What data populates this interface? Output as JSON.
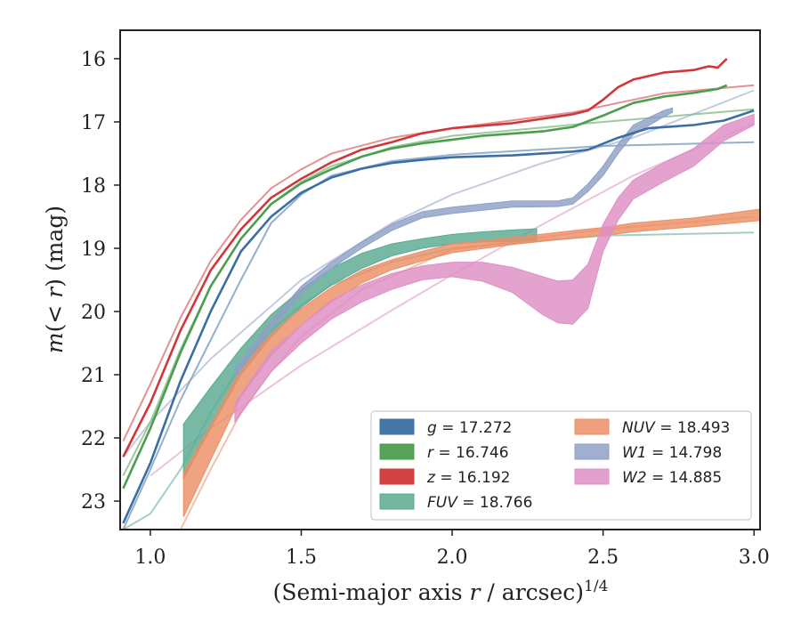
{
  "chart_data": {
    "type": "line",
    "xlabel": "(Semi-major axis r / arcsec)^1/4",
    "ylabel": "m(< r) (mag)",
    "xlim": [
      0.9,
      3.02
    ],
    "ylim": [
      23.45,
      15.55
    ],
    "y_inverted": true,
    "grid": false,
    "legend_position": "lower-right",
    "xticks": [
      {
        "value": 1.0,
        "label": "1.0"
      },
      {
        "value": 1.5,
        "label": "1.5"
      },
      {
        "value": 2.0,
        "label": "2.0"
      },
      {
        "value": 2.5,
        "label": "2.5"
      },
      {
        "value": 3.0,
        "label": "3.0"
      }
    ],
    "yticks": [
      {
        "value": 16,
        "label": "16"
      },
      {
        "value": 17,
        "label": "17"
      },
      {
        "value": 18,
        "label": "18"
      },
      {
        "value": 19,
        "label": "19"
      },
      {
        "value": 20,
        "label": "20"
      },
      {
        "value": 21,
        "label": "21"
      },
      {
        "value": 22,
        "label": "22"
      },
      {
        "value": 23,
        "label": "23"
      }
    ],
    "series": [
      {
        "name": "g = 17.272",
        "band": "g",
        "value": "17.272",
        "color": "#3b6fa3",
        "style": "line",
        "data": [
          [
            0.91,
            23.35
          ],
          [
            1.0,
            22.4
          ],
          [
            1.1,
            21.1
          ],
          [
            1.2,
            20.0
          ],
          [
            1.3,
            19.05
          ],
          [
            1.4,
            18.5
          ],
          [
            1.5,
            18.12
          ],
          [
            1.6,
            17.88
          ],
          [
            1.7,
            17.74
          ],
          [
            1.8,
            17.65
          ],
          [
            1.9,
            17.6
          ],
          [
            2.0,
            17.56
          ],
          [
            2.2,
            17.53
          ],
          [
            2.4,
            17.47
          ],
          [
            2.45,
            17.44
          ],
          [
            2.55,
            17.25
          ],
          [
            2.65,
            17.1
          ],
          [
            2.8,
            17.05
          ],
          [
            2.9,
            16.98
          ],
          [
            3.0,
            16.82
          ]
        ],
        "model": [
          [
            0.91,
            23.45
          ],
          [
            1.0,
            22.5
          ],
          [
            1.1,
            21.4
          ],
          [
            1.2,
            20.45
          ],
          [
            1.3,
            19.5
          ],
          [
            1.4,
            18.6
          ],
          [
            1.5,
            18.15
          ],
          [
            1.6,
            17.85
          ],
          [
            1.8,
            17.62
          ],
          [
            2.0,
            17.52
          ],
          [
            2.5,
            17.38
          ],
          [
            3.0,
            17.32
          ]
        ]
      },
      {
        "name": "r = 16.746",
        "band": "r",
        "value": "16.746",
        "color": "#4c9e4f",
        "style": "line",
        "data": [
          [
            0.91,
            22.8
          ],
          [
            1.0,
            21.85
          ],
          [
            1.1,
            20.65
          ],
          [
            1.2,
            19.6
          ],
          [
            1.3,
            18.85
          ],
          [
            1.4,
            18.3
          ],
          [
            1.5,
            17.97
          ],
          [
            1.6,
            17.75
          ],
          [
            1.7,
            17.55
          ],
          [
            1.8,
            17.42
          ],
          [
            1.9,
            17.34
          ],
          [
            2.0,
            17.28
          ],
          [
            2.1,
            17.22
          ],
          [
            2.3,
            17.15
          ],
          [
            2.4,
            17.08
          ],
          [
            2.5,
            16.9
          ],
          [
            2.6,
            16.7
          ],
          [
            2.7,
            16.6
          ],
          [
            2.8,
            16.54
          ],
          [
            2.88,
            16.48
          ],
          [
            2.91,
            16.42
          ]
        ],
        "model": [
          [
            0.91,
            22.6
          ],
          [
            1.0,
            21.75
          ],
          [
            1.1,
            20.6
          ],
          [
            1.2,
            19.6
          ],
          [
            1.3,
            18.85
          ],
          [
            1.4,
            18.3
          ],
          [
            1.5,
            17.95
          ],
          [
            1.6,
            17.7
          ],
          [
            1.8,
            17.4
          ],
          [
            2.0,
            17.22
          ],
          [
            2.5,
            17.0
          ],
          [
            3.0,
            16.8
          ]
        ]
      },
      {
        "name": "z = 16.192",
        "band": "z",
        "value": "16.192",
        "color": "#d0373a",
        "style": "line",
        "data": [
          [
            0.91,
            22.3
          ],
          [
            1.0,
            21.45
          ],
          [
            1.1,
            20.3
          ],
          [
            1.2,
            19.35
          ],
          [
            1.3,
            18.7
          ],
          [
            1.4,
            18.2
          ],
          [
            1.5,
            17.9
          ],
          [
            1.6,
            17.64
          ],
          [
            1.7,
            17.44
          ],
          [
            1.8,
            17.32
          ],
          [
            1.9,
            17.18
          ],
          [
            2.0,
            17.1
          ],
          [
            2.2,
            17.02
          ],
          [
            2.4,
            16.88
          ],
          [
            2.45,
            16.82
          ],
          [
            2.5,
            16.65
          ],
          [
            2.55,
            16.45
          ],
          [
            2.6,
            16.33
          ],
          [
            2.7,
            16.22
          ],
          [
            2.8,
            16.18
          ],
          [
            2.85,
            16.12
          ],
          [
            2.88,
            16.14
          ],
          [
            2.91,
            16.0
          ]
        ],
        "model": [
          [
            0.91,
            22.05
          ],
          [
            1.0,
            21.15
          ],
          [
            1.1,
            20.1
          ],
          [
            1.2,
            19.2
          ],
          [
            1.3,
            18.55
          ],
          [
            1.4,
            18.05
          ],
          [
            1.5,
            17.75
          ],
          [
            1.6,
            17.5
          ],
          [
            1.8,
            17.25
          ],
          [
            2.0,
            17.1
          ],
          [
            2.4,
            16.85
          ],
          [
            2.7,
            16.55
          ],
          [
            3.0,
            16.42
          ]
        ]
      },
      {
        "name": "FUV = 18.766",
        "band": "FUV",
        "value": "18.766",
        "color": "#5aaa93",
        "style": "band",
        "upper": [
          [
            1.11,
            21.78
          ],
          [
            1.2,
            21.2
          ],
          [
            1.3,
            20.58
          ],
          [
            1.4,
            20.05
          ],
          [
            1.5,
            19.65
          ],
          [
            1.6,
            19.32
          ],
          [
            1.7,
            19.08
          ],
          [
            1.8,
            18.93
          ],
          [
            1.9,
            18.85
          ],
          [
            2.0,
            18.78
          ],
          [
            2.1,
            18.74
          ],
          [
            2.2,
            18.71
          ],
          [
            2.28,
            18.69
          ]
        ],
        "lower": [
          [
            1.11,
            22.65
          ],
          [
            1.2,
            21.85
          ],
          [
            1.3,
            21.0
          ],
          [
            1.4,
            20.4
          ],
          [
            1.5,
            19.93
          ],
          [
            1.6,
            19.58
          ],
          [
            1.7,
            19.32
          ],
          [
            1.8,
            19.12
          ],
          [
            1.9,
            19.0
          ],
          [
            2.0,
            18.93
          ],
          [
            2.1,
            18.9
          ],
          [
            2.2,
            18.89
          ],
          [
            2.28,
            18.88
          ]
        ],
        "model": [
          [
            0.91,
            23.45
          ],
          [
            1.0,
            23.2
          ],
          [
            1.1,
            22.5
          ],
          [
            1.2,
            21.6
          ],
          [
            1.3,
            20.85
          ],
          [
            1.4,
            20.3
          ],
          [
            1.5,
            19.9
          ],
          [
            1.6,
            19.58
          ],
          [
            1.8,
            19.22
          ],
          [
            2.0,
            19.0
          ],
          [
            2.5,
            18.8
          ],
          [
            3.0,
            18.75
          ]
        ]
      },
      {
        "name": "NUV = 18.493",
        "band": "NUV",
        "value": "18.493",
        "color": "#eb8f65",
        "style": "band",
        "upper": [
          [
            1.11,
            22.55
          ],
          [
            1.2,
            21.8
          ],
          [
            1.3,
            20.9
          ],
          [
            1.4,
            20.35
          ],
          [
            1.5,
            19.95
          ],
          [
            1.6,
            19.62
          ],
          [
            1.7,
            19.35
          ],
          [
            1.8,
            19.18
          ],
          [
            1.9,
            19.05
          ],
          [
            2.0,
            18.93
          ],
          [
            2.2,
            18.83
          ],
          [
            2.4,
            18.72
          ],
          [
            2.5,
            18.67
          ],
          [
            2.6,
            18.6
          ],
          [
            2.8,
            18.52
          ],
          [
            3.02,
            18.38
          ]
        ],
        "lower": [
          [
            1.11,
            23.25
          ],
          [
            1.2,
            22.35
          ],
          [
            1.3,
            21.35
          ],
          [
            1.4,
            20.7
          ],
          [
            1.5,
            20.22
          ],
          [
            1.6,
            19.85
          ],
          [
            1.7,
            19.55
          ],
          [
            1.8,
            19.34
          ],
          [
            1.9,
            19.2
          ],
          [
            2.0,
            19.07
          ],
          [
            2.2,
            18.94
          ],
          [
            2.4,
            18.84
          ],
          [
            2.5,
            18.8
          ],
          [
            2.6,
            18.74
          ],
          [
            2.8,
            18.66
          ],
          [
            3.02,
            18.56
          ]
        ],
        "model": [
          [
            1.1,
            23.45
          ],
          [
            1.2,
            22.5
          ],
          [
            1.3,
            21.6
          ],
          [
            1.4,
            20.95
          ],
          [
            1.5,
            20.4
          ],
          [
            1.7,
            19.65
          ],
          [
            2.0,
            19.02
          ],
          [
            2.5,
            18.7
          ],
          [
            3.0,
            18.5
          ]
        ]
      },
      {
        "name": "W1 = 14.798",
        "band": "W1",
        "value": "14.798",
        "color": "#8fa0c7",
        "style": "band",
        "upper": [
          [
            1.28,
            20.9
          ],
          [
            1.4,
            20.15
          ],
          [
            1.5,
            19.6
          ],
          [
            1.6,
            19.22
          ],
          [
            1.7,
            18.9
          ],
          [
            1.8,
            18.62
          ],
          [
            1.9,
            18.42
          ],
          [
            2.0,
            18.35
          ],
          [
            2.2,
            18.25
          ],
          [
            2.35,
            18.25
          ],
          [
            2.4,
            18.2
          ],
          [
            2.45,
            17.98
          ],
          [
            2.5,
            17.7
          ],
          [
            2.55,
            17.35
          ],
          [
            2.6,
            17.05
          ],
          [
            2.7,
            16.82
          ],
          [
            2.73,
            16.78
          ]
        ],
        "lower": [
          [
            1.28,
            21.05
          ],
          [
            1.4,
            20.28
          ],
          [
            1.5,
            19.72
          ],
          [
            1.6,
            19.32
          ],
          [
            1.7,
            19.0
          ],
          [
            1.8,
            18.72
          ],
          [
            1.9,
            18.52
          ],
          [
            2.0,
            18.45
          ],
          [
            2.2,
            18.35
          ],
          [
            2.35,
            18.34
          ],
          [
            2.4,
            18.3
          ],
          [
            2.45,
            18.1
          ],
          [
            2.5,
            17.85
          ],
          [
            2.55,
            17.5
          ],
          [
            2.6,
            17.2
          ],
          [
            2.7,
            16.92
          ],
          [
            2.73,
            16.85
          ]
        ],
        "model": [
          [
            0.91,
            22.3
          ],
          [
            1.0,
            21.75
          ],
          [
            1.2,
            20.75
          ],
          [
            1.5,
            19.5
          ],
          [
            1.8,
            18.6
          ],
          [
            2.0,
            18.15
          ],
          [
            2.3,
            17.65
          ],
          [
            2.6,
            17.25
          ],
          [
            3.0,
            16.5
          ]
        ]
      },
      {
        "name": "W2 = 14.885",
        "band": "W2",
        "value": "14.885",
        "color": "#de8fc4",
        "style": "band",
        "upper": [
          [
            1.28,
            21.45
          ],
          [
            1.4,
            20.62
          ],
          [
            1.5,
            20.22
          ],
          [
            1.6,
            19.82
          ],
          [
            1.7,
            19.58
          ],
          [
            1.8,
            19.4
          ],
          [
            1.9,
            19.28
          ],
          [
            2.0,
            19.22
          ],
          [
            2.1,
            19.22
          ],
          [
            2.2,
            19.3
          ],
          [
            2.3,
            19.45
          ],
          [
            2.35,
            19.52
          ],
          [
            2.4,
            19.5
          ],
          [
            2.45,
            19.25
          ],
          [
            2.5,
            18.62
          ],
          [
            2.55,
            18.2
          ],
          [
            2.6,
            17.92
          ],
          [
            2.7,
            17.65
          ],
          [
            2.8,
            17.42
          ],
          [
            2.9,
            17.05
          ],
          [
            3.0,
            16.88
          ]
        ],
        "lower": [
          [
            1.28,
            21.75
          ],
          [
            1.4,
            20.95
          ],
          [
            1.5,
            20.5
          ],
          [
            1.6,
            20.12
          ],
          [
            1.7,
            19.85
          ],
          [
            1.8,
            19.65
          ],
          [
            1.9,
            19.5
          ],
          [
            2.0,
            19.45
          ],
          [
            2.1,
            19.52
          ],
          [
            2.2,
            19.7
          ],
          [
            2.3,
            20.05
          ],
          [
            2.35,
            20.18
          ],
          [
            2.4,
            20.2
          ],
          [
            2.45,
            19.95
          ],
          [
            2.5,
            19.05
          ],
          [
            2.55,
            18.55
          ],
          [
            2.6,
            18.22
          ],
          [
            2.7,
            17.95
          ],
          [
            2.8,
            17.7
          ],
          [
            2.9,
            17.3
          ],
          [
            3.0,
            17.05
          ]
        ],
        "model": [
          [
            1.0,
            22.6
          ],
          [
            1.2,
            21.85
          ],
          [
            1.5,
            20.85
          ],
          [
            1.8,
            19.98
          ],
          [
            2.0,
            19.42
          ],
          [
            2.3,
            18.62
          ],
          [
            2.6,
            17.85
          ],
          [
            3.0,
            17.02
          ]
        ]
      }
    ]
  }
}
